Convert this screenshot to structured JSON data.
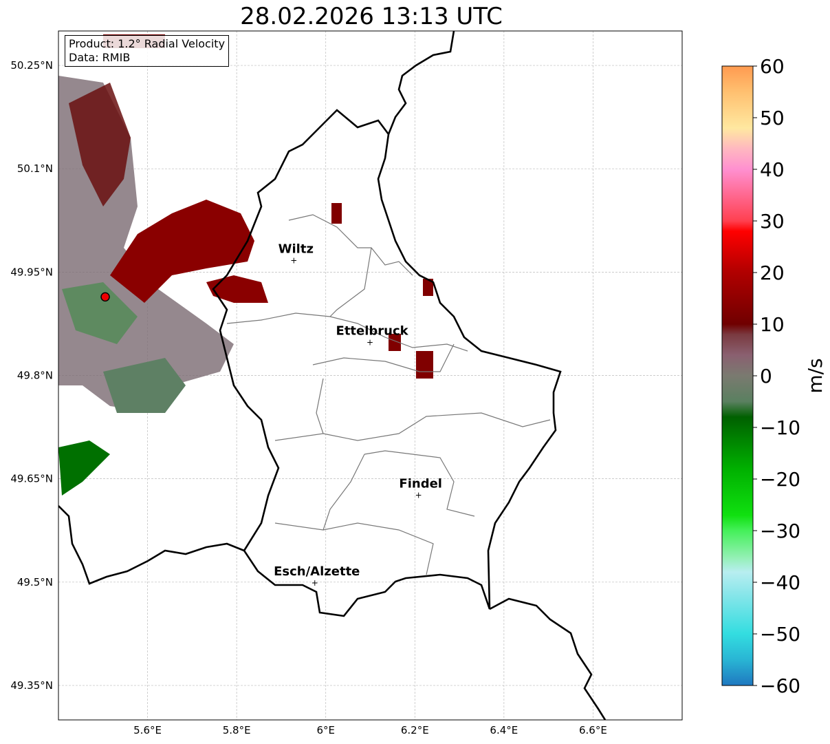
{
  "title": "28.02.2026 13:13 UTC",
  "info": {
    "product": "Product: 1.2° Radial Velocity",
    "data": "Data: RMIB"
  },
  "axes": {
    "lon_ticks": [
      {
        "v": 5.6,
        "label": "5.6°E"
      },
      {
        "v": 5.8,
        "label": "5.8°E"
      },
      {
        "v": 6.0,
        "label": "6°E"
      },
      {
        "v": 6.2,
        "label": "6.2°E"
      },
      {
        "v": 6.4,
        "label": "6.4°E"
      },
      {
        "v": 6.6,
        "label": "6.6°E"
      }
    ],
    "lat_ticks": [
      {
        "v": 50.25,
        "label": "50.25°N"
      },
      {
        "v": 50.1,
        "label": "50.1°N"
      },
      {
        "v": 49.95,
        "label": "49.95°N"
      },
      {
        "v": 49.8,
        "label": "49.8°N"
      },
      {
        "v": 49.65,
        "label": "49.65°N"
      },
      {
        "v": 49.5,
        "label": "49.5°N"
      },
      {
        "v": 49.35,
        "label": "49.35°N"
      }
    ],
    "lon_range": [
      5.4,
      6.8
    ],
    "lat_range": [
      49.3,
      50.3
    ]
  },
  "cities": [
    {
      "name": "Wiltz",
      "lon": 5.933,
      "lat": 49.968
    },
    {
      "name": "Ettelbruck",
      "lon": 6.104,
      "lat": 49.849
    },
    {
      "name": "Findel",
      "lon": 6.213,
      "lat": 49.627
    },
    {
      "name": "Esch/Alzette",
      "lon": 5.98,
      "lat": 49.5
    }
  ],
  "radar_site": {
    "lon": 5.505,
    "lat": 49.914
  },
  "colorbar": {
    "label": "m/s",
    "min": -60,
    "max": 60,
    "ticks": [
      {
        "v": 60,
        "label": "60"
      },
      {
        "v": 50,
        "label": "50"
      },
      {
        "v": 40,
        "label": "40"
      },
      {
        "v": 30,
        "label": "30"
      },
      {
        "v": 20,
        "label": "20"
      },
      {
        "v": 10,
        "label": "10"
      },
      {
        "v": 0,
        "label": "0"
      },
      {
        "v": -10,
        "label": "−10"
      },
      {
        "v": -20,
        "label": "−20"
      },
      {
        "v": -30,
        "label": "−30"
      },
      {
        "v": -40,
        "label": "−40"
      },
      {
        "v": -50,
        "label": "−50"
      },
      {
        "v": -60,
        "label": "−60"
      }
    ],
    "stops": [
      {
        "v": -60,
        "c": "#1f78c0"
      },
      {
        "v": -55,
        "c": "#29b5d4"
      },
      {
        "v": -50,
        "c": "#33dde0"
      },
      {
        "v": -42,
        "c": "#8ce6ea"
      },
      {
        "v": -38,
        "c": "#b8eef0"
      },
      {
        "v": -35,
        "c": "#90f0b0"
      },
      {
        "v": -30,
        "c": "#45f05a"
      },
      {
        "v": -27,
        "c": "#10e010"
      },
      {
        "v": -18,
        "c": "#00b000"
      },
      {
        "v": -8,
        "c": "#006000"
      },
      {
        "v": -5,
        "c": "#5a8060"
      },
      {
        "v": 0,
        "c": "#7a7a70"
      },
      {
        "v": 4,
        "c": "#8a6070"
      },
      {
        "v": 8,
        "c": "#7a3a40"
      },
      {
        "v": 10,
        "c": "#700000"
      },
      {
        "v": 20,
        "c": "#b00000"
      },
      {
        "v": 28,
        "c": "#ff0000"
      },
      {
        "v": 30,
        "c": "#ff4050"
      },
      {
        "v": 40,
        "c": "#ff90d0"
      },
      {
        "v": 44,
        "c": "#ffb8c0"
      },
      {
        "v": 48,
        "c": "#ffe8a0"
      },
      {
        "v": 55,
        "c": "#ffc070"
      },
      {
        "v": 60,
        "c": "#ff9a50"
      }
    ]
  }
}
